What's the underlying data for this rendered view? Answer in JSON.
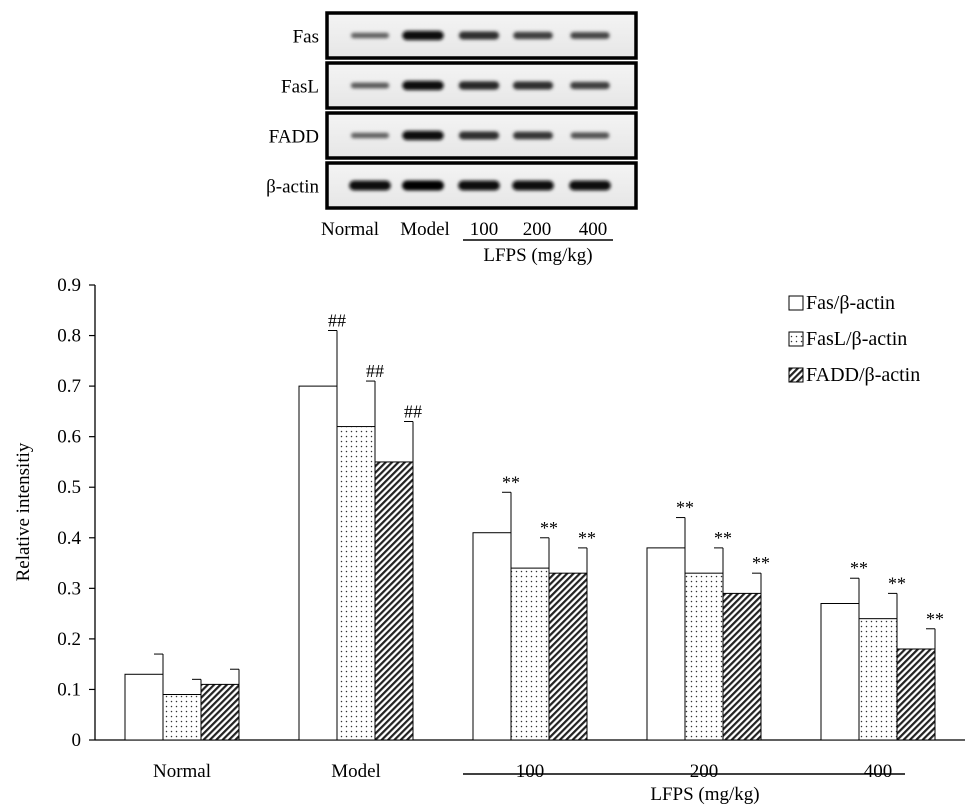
{
  "blot": {
    "rows": [
      "Fas",
      "FasL",
      "FADD",
      "β-actin"
    ],
    "lanes": [
      "Normal",
      "Model",
      "100",
      "200",
      "400"
    ],
    "treatment_label": "LFPS (mg/kg)",
    "band_intensity": [
      [
        0.35,
        0.9,
        0.7,
        0.6,
        0.55
      ],
      [
        0.4,
        0.9,
        0.75,
        0.7,
        0.6
      ],
      [
        0.35,
        0.9,
        0.7,
        0.65,
        0.45
      ],
      [
        0.95,
        1.0,
        0.95,
        0.95,
        0.95
      ]
    ]
  },
  "chart_data": {
    "type": "bar",
    "title": "",
    "xlabel": "LFPS (mg/kg)",
    "ylabel": "Relative intensitiy",
    "ylim": [
      0,
      0.9
    ],
    "yticks": [
      "0",
      "0.1",
      "0.2",
      "0.3",
      "0.4",
      "0.5",
      "0.6",
      "0.7",
      "0.8",
      "0.9"
    ],
    "categories": [
      "Normal",
      "Model",
      "100",
      "200",
      "400"
    ],
    "treatment_groups": [
      "100",
      "200",
      "400"
    ],
    "grid": false,
    "legend_position": "top-right",
    "series": [
      {
        "name": "Fas/β-actin",
        "pattern": "open",
        "values": [
          0.13,
          0.7,
          0.41,
          0.38,
          0.27
        ],
        "errors": [
          0.04,
          0.11,
          0.08,
          0.06,
          0.05
        ],
        "annotations": [
          "",
          "##",
          "**",
          "**",
          "**"
        ]
      },
      {
        "name": "FasL/β-actin",
        "pattern": "dotted",
        "values": [
          0.09,
          0.62,
          0.34,
          0.33,
          0.24
        ],
        "errors": [
          0.03,
          0.09,
          0.06,
          0.05,
          0.05
        ],
        "annotations": [
          "",
          "##",
          "**",
          "**",
          "**"
        ]
      },
      {
        "name": "FADD/β-actin",
        "pattern": "hatched",
        "values": [
          0.11,
          0.55,
          0.33,
          0.29,
          0.18
        ],
        "errors": [
          0.03,
          0.08,
          0.05,
          0.04,
          0.04
        ],
        "annotations": [
          "",
          "##",
          "**",
          "**",
          "**"
        ]
      }
    ]
  }
}
